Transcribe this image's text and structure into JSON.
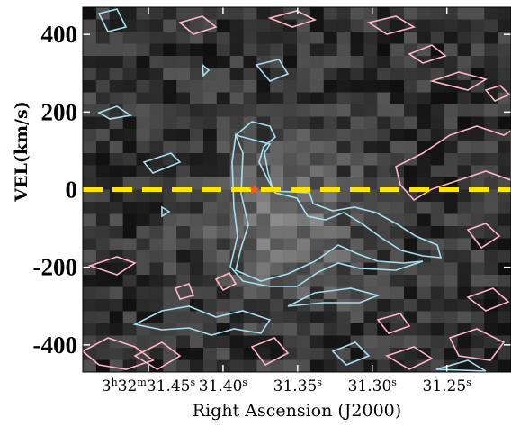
{
  "chart_data": {
    "type": "pv-diagram",
    "xlabel": "Right Ascension (J2000)",
    "ylabel": "VEL(km/s)",
    "xlim": [
      31.494,
      31.207
    ],
    "ylim": [
      -470,
      470
    ],
    "xticks": [
      {
        "value": 31.45,
        "label": "3h32m31.45s"
      },
      {
        "value": 31.4,
        "label": "31.40s"
      },
      {
        "value": 31.35,
        "label": "31.35s"
      },
      {
        "value": 31.3,
        "label": "31.30s"
      },
      {
        "value": 31.25,
        "label": "31.25s"
      }
    ],
    "yticks": [
      400,
      200,
      0,
      -200,
      -400
    ],
    "reference_line": {
      "y": 0,
      "color": "#ffe600"
    },
    "marker": {
      "x": 31.379,
      "y": 0,
      "color": "#ff5a1e"
    }
  }
}
